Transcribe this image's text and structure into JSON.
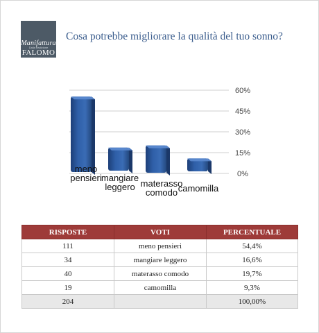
{
  "logo": {
    "line1": "Manifattura",
    "line2": "Dalla tradizione",
    "line3": "FALOMO"
  },
  "title": "Cosa potrebbe migliorare la qualità del tuo sonno?",
  "colors": {
    "bar": "#2f5fa8",
    "header": "#9e3b39",
    "title": "#3c5e8e"
  },
  "chart_data": {
    "type": "bar",
    "categories": [
      [
        "meno",
        "pensieri"
      ],
      [
        "mangiare",
        "leggero"
      ],
      [
        "materasso",
        "comodo"
      ],
      [
        "camomilla"
      ]
    ],
    "values": [
      54.4,
      16.6,
      19.7,
      9.3
    ],
    "ylim": [
      0,
      60
    ],
    "yticks": [
      "0%",
      "15%",
      "30%",
      "45%",
      "60%"
    ],
    "grid": true
  },
  "table": {
    "headers": [
      "RISPOSTE",
      "VOTI",
      "PERCENTUALE"
    ],
    "rows": [
      [
        "111",
        "meno pensieri",
        "54,4%"
      ],
      [
        "34",
        "mangiare leggero",
        "16,6%"
      ],
      [
        "40",
        "materasso comodo",
        "19,7%"
      ],
      [
        "19",
        "camomilla",
        "9,3%"
      ]
    ],
    "total": [
      "204",
      "",
      "100,00%"
    ]
  }
}
